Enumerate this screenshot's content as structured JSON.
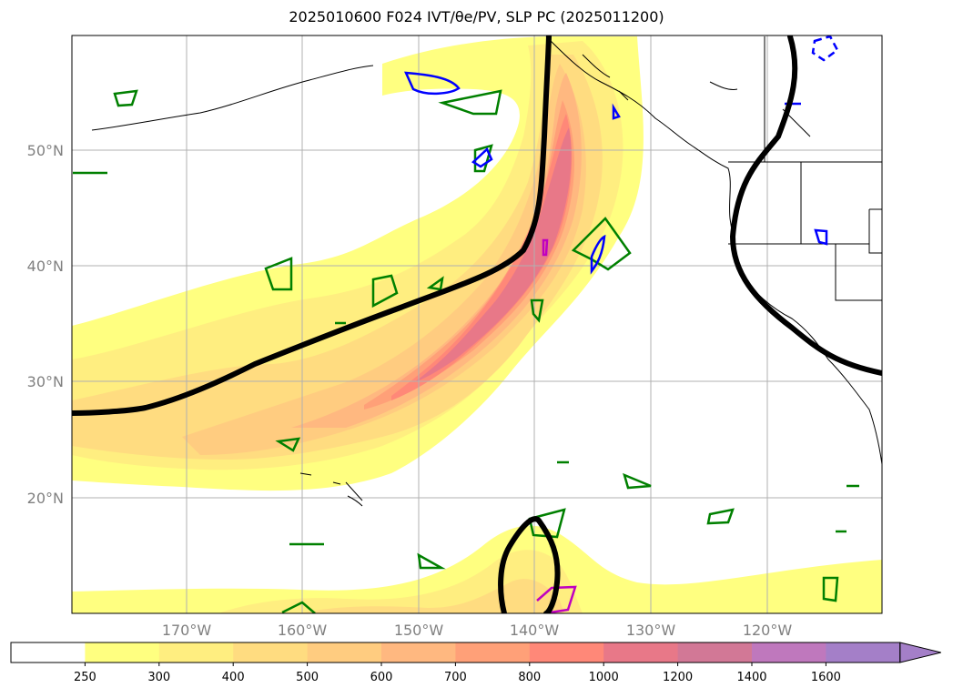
{
  "title": "2025010600 F024 IVT/θe/PV, SLP PC (2025011200)",
  "lon_labels": [
    "170°W",
    "160°W",
    "150°W",
    "140°W",
    "130°W",
    "120°W"
  ],
  "lat_labels": [
    "50°N",
    "40°N",
    "30°N",
    "20°N"
  ],
  "colorbar": {
    "levels": [
      "250",
      "300",
      "400",
      "500",
      "600",
      "700",
      "800",
      "1000",
      "1200",
      "1400",
      "1600"
    ],
    "colors": [
      "#ffffff",
      "#ffff80",
      "#ffee80",
      "#ffdc80",
      "#ffcc80",
      "#ffb880",
      "#ffa078",
      "#ff8878",
      "#e87888",
      "#d27896",
      "#bf78bd",
      "#a47fc8"
    ]
  },
  "colors": {
    "slp_contour": "#000000",
    "green_contours": "#008000",
    "blue_contours": "#0000ff",
    "magenta_contours": "#c000c0",
    "gridlines": "#b0b0b0",
    "coastline": "#000000"
  }
}
